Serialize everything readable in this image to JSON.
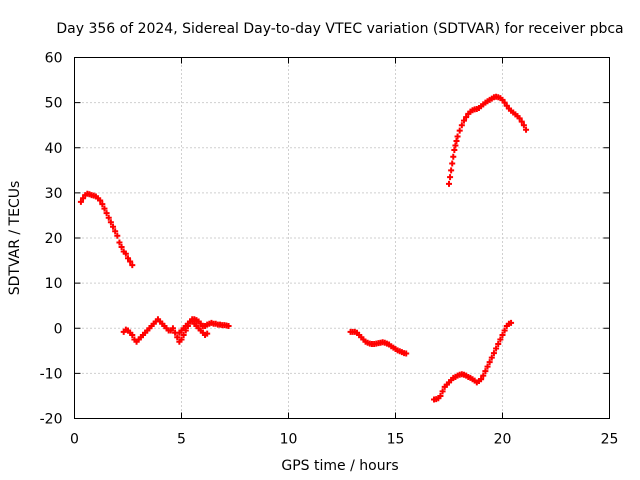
{
  "chart_data": {
    "type": "scatter",
    "title": "Day 356 of 2024, Sidereal Day-to-day VTEC variation (SDTVAR) for receiver pbca",
    "xlabel": "GPS time / hours",
    "ylabel": "SDTVAR / TECUs",
    "xlim": [
      0,
      25
    ],
    "ylim": [
      -20,
      60
    ],
    "xticks": [
      0,
      5,
      10,
      15,
      20,
      25
    ],
    "yticks": [
      -20,
      -10,
      0,
      10,
      20,
      30,
      40,
      50,
      60
    ],
    "xtick_labels": [
      "0",
      "5",
      "10",
      "15",
      "20",
      "25"
    ],
    "ytick_labels": [
      "-20",
      "-10",
      "0",
      "10",
      "20",
      "30",
      "40",
      "50",
      "60"
    ],
    "grid": true,
    "marker_color": "#ff0000",
    "series": [
      {
        "name": "segment-1",
        "x": [
          0.3,
          0.4,
          0.5,
          0.6,
          0.7,
          0.8,
          0.9,
          1.0,
          1.1,
          1.2,
          1.3,
          1.4,
          1.5,
          1.6,
          1.7,
          1.8,
          1.9,
          2.0,
          2.1,
          2.2,
          2.3,
          2.4,
          2.5,
          2.6,
          2.7
        ],
        "y": [
          28,
          28.8,
          29.5,
          29.8,
          29.7,
          29.5,
          29.4,
          29.2,
          28.8,
          28.3,
          27.5,
          26.5,
          25.5,
          24.5,
          23.5,
          22.5,
          21.5,
          20.5,
          19,
          18,
          17,
          16.5,
          15.5,
          14.8,
          14
        ]
      },
      {
        "name": "segment-2",
        "x": [
          2.3,
          2.4,
          2.5,
          2.6,
          2.7,
          2.8,
          2.9,
          3.0,
          3.1,
          3.2,
          3.3,
          3.4,
          3.5,
          3.6,
          3.7,
          3.8,
          3.9,
          4.0,
          4.1,
          4.2,
          4.3,
          4.4,
          4.5,
          4.6,
          4.7,
          4.8,
          4.9,
          5.0,
          5.1,
          5.2,
          5.3,
          5.4,
          5.5,
          5.6,
          5.7,
          5.8,
          5.9,
          6.0,
          6.1,
          6.2,
          6.3,
          6.4,
          6.5,
          6.6,
          6.7,
          6.8,
          6.9,
          7.0,
          7.1,
          7.2
        ],
        "y": [
          -0.8,
          -0.3,
          -0.5,
          -1,
          -1.5,
          -2.5,
          -3,
          -2.5,
          -2,
          -1.5,
          -1,
          -0.5,
          0,
          0.5,
          1,
          1.5,
          2,
          1.5,
          1,
          0.5,
          0,
          -0.5,
          -0.5,
          0,
          -1,
          -2,
          -3,
          -2.5,
          -1.5,
          -0.5,
          0.5,
          1.5,
          2,
          2,
          1.8,
          1.5,
          1,
          0.5,
          0.5,
          0.8,
          1,
          1.2,
          1,
          1,
          0.8,
          0.8,
          0.7,
          0.7,
          0.6,
          0.5
        ]
      },
      {
        "name": "segment-2b",
        "x": [
          4.9,
          5.0,
          5.1,
          5.2,
          5.3,
          5.4,
          5.5,
          5.6,
          5.7,
          5.8,
          5.9,
          6.0,
          6.1,
          6.2
        ],
        "y": [
          -1,
          -0.5,
          0,
          0.5,
          1,
          1.5,
          1.5,
          1,
          0.5,
          0,
          -0.5,
          -1,
          -1.5,
          -1.2
        ]
      },
      {
        "name": "segment-3",
        "x": [
          12.9,
          13.0,
          13.1,
          13.2,
          13.3,
          13.4,
          13.5,
          13.6,
          13.7,
          13.8,
          13.9,
          14.0,
          14.1,
          14.2,
          14.3,
          14.4,
          14.5,
          14.6,
          14.7,
          14.8,
          14.9,
          15.0,
          15.1,
          15.2,
          15.3,
          15.4,
          15.5
        ],
        "y": [
          -0.8,
          -0.8,
          -0.8,
          -1,
          -1.5,
          -2,
          -2.5,
          -3,
          -3.2,
          -3.4,
          -3.5,
          -3.5,
          -3.4,
          -3.3,
          -3.2,
          -3.1,
          -3.2,
          -3.4,
          -3.6,
          -4,
          -4.3,
          -4.6,
          -4.9,
          -5.1,
          -5.3,
          -5.5,
          -5.6
        ]
      },
      {
        "name": "segment-4",
        "x": [
          16.8,
          16.9,
          17.0,
          17.1,
          17.2,
          17.3,
          17.4,
          17.5,
          17.6,
          17.7,
          17.8,
          17.9,
          18.0,
          18.1,
          18.2,
          18.3,
          18.4,
          18.5,
          18.6,
          18.7,
          18.8,
          18.9,
          19.0,
          19.1,
          19.2,
          19.3,
          19.4,
          19.5,
          19.6,
          19.7,
          19.8,
          19.9,
          20.0,
          20.1,
          20.2,
          20.3,
          20.4
        ],
        "y": [
          -15.8,
          -15.7,
          -15.5,
          -15,
          -14,
          -13,
          -12.5,
          -12,
          -11.5,
          -11,
          -10.8,
          -10.5,
          -10.3,
          -10.2,
          -10.3,
          -10.5,
          -10.8,
          -11,
          -11.3,
          -11.6,
          -12,
          -11.7,
          -11.3,
          -10.5,
          -9.5,
          -8.5,
          -7.5,
          -6.5,
          -5.5,
          -4.5,
          -3.5,
          -2.5,
          -1.5,
          -0.5,
          0.5,
          1,
          1.2
        ]
      },
      {
        "name": "segment-5",
        "x": [
          17.5,
          17.55,
          17.6,
          17.65,
          17.7,
          17.75,
          17.8,
          17.85,
          17.9,
          18.0,
          18.1,
          18.2,
          18.3,
          18.4,
          18.5,
          18.6,
          18.7,
          18.8,
          18.9,
          19.0,
          19.1,
          19.2,
          19.3,
          19.4,
          19.5,
          19.6,
          19.7,
          19.8,
          19.9,
          20.0,
          20.1,
          20.2,
          20.3,
          20.4,
          20.5,
          20.6,
          20.7,
          20.8,
          20.9,
          21.0,
          21.1
        ],
        "y": [
          32,
          33.5,
          35,
          36.5,
          38,
          39.5,
          40.5,
          41.5,
          42.5,
          43.8,
          45,
          46,
          46.8,
          47.5,
          48,
          48.3,
          48.5,
          48.6,
          48.8,
          49.2,
          49.6,
          50,
          50.3,
          50.6,
          50.9,
          51.2,
          51.3,
          51.2,
          51,
          50.6,
          50,
          49.3,
          48.7,
          48.2,
          47.8,
          47.4,
          47,
          46.5,
          45.8,
          45,
          44
        ]
      }
    ]
  }
}
